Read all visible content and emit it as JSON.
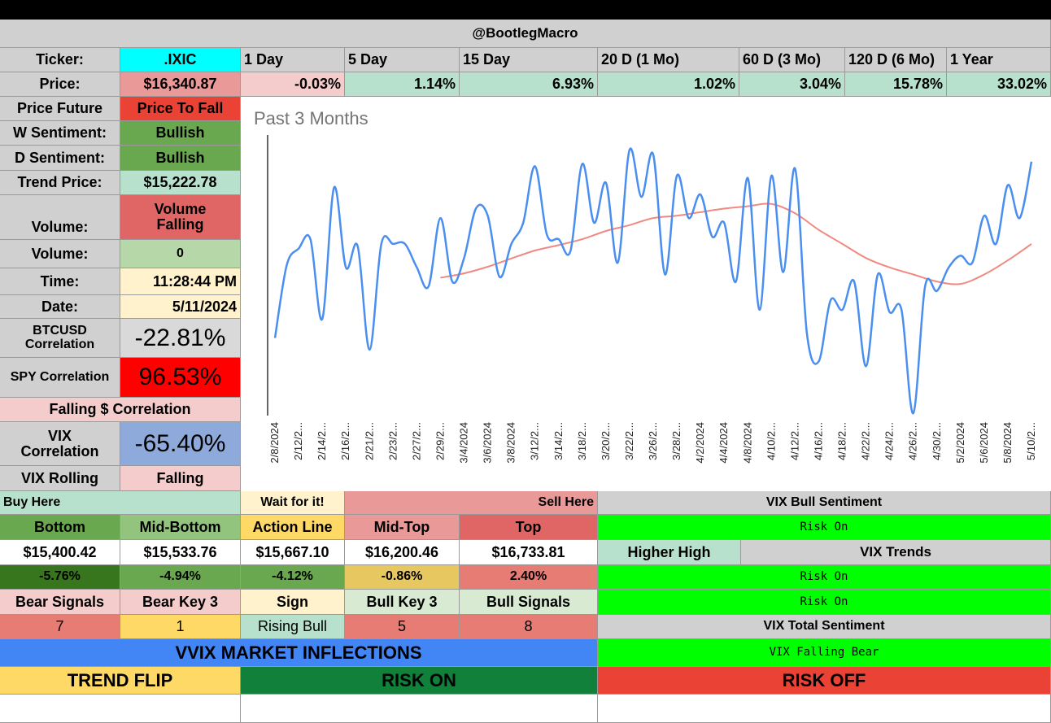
{
  "header": {
    "title": "@BootlegMacro"
  },
  "ticker": {
    "label": "Ticker:",
    "value": ".IXIC"
  },
  "periods": [
    {
      "label": "1 Day",
      "change": "-0.03%"
    },
    {
      "label": "5 Day",
      "change": "1.14%"
    },
    {
      "label": "15 Day",
      "change": "6.93%"
    },
    {
      "label": "20 D (1 Mo)",
      "change": "1.02%"
    },
    {
      "label": "60 D (3 Mo)",
      "change": "3.04%"
    },
    {
      "label": "120 D (6 Mo)",
      "change": "15.78%"
    },
    {
      "label": "1 Year",
      "change": "33.02%"
    }
  ],
  "sidebar": {
    "price_label": "Price:",
    "price_value": "$16,340.87",
    "future_label": "Price Future",
    "future_value": "Price To Fall",
    "w_sent_label": "W Sentiment:",
    "w_sent_value": "Bullish",
    "d_sent_label": "D Sentiment:",
    "d_sent_value": "Bullish",
    "trend_label": "Trend Price:",
    "trend_value": "$15,222.78",
    "volume_label": "Volume:",
    "volume_status": "Volume Falling",
    "volume2_label": "Volume:",
    "volume2_value": "0",
    "time_label": "Time:",
    "time_value": "11:28:44 PM",
    "date_label": "Date:",
    "date_value": "5/11/2024",
    "btc_label": "BTCUSD Correlation",
    "btc_value": "-22.81%",
    "spy_label": "SPY Correlation",
    "spy_value": "96.53%",
    "falling_corr": "Falling $ Correlation",
    "vix_label": "VIX Correlation",
    "vix_value": "-65.40%",
    "vixroll_label": "VIX Rolling",
    "vixroll_value": "Falling"
  },
  "levels": {
    "buy_here": "Buy Here",
    "wait": "Wait for it!",
    "sell_here": "Sell Here",
    "headers": [
      "Bottom",
      "Mid-Bottom",
      "Action Line",
      "Mid-Top",
      "Top"
    ],
    "prices": [
      "$15,400.42",
      "$15,533.76",
      "$15,667.10",
      "$16,200.46",
      "$16,733.81"
    ],
    "pcts": [
      "-5.76%",
      "-4.94%",
      "-4.12%",
      "-0.86%",
      "2.40%"
    ],
    "signal_headers": [
      "Bear Signals",
      "Bear Key 3",
      "Sign",
      "Bull Key 3",
      "Bull Signals"
    ],
    "signal_values": [
      "7",
      "1",
      "Rising Bull",
      "5",
      "8"
    ]
  },
  "vix": {
    "bull_sentiment_label": "VIX Bull Sentiment",
    "bull_sentiment_value": "Risk On",
    "higher_high": "Higher High",
    "trends_label": "VIX Trends",
    "trend1": "Risk On",
    "trend2": "Risk On",
    "total_label": "VIX Total Sentiment",
    "total_value": "VIX Falling Bear"
  },
  "vvix": {
    "title": "VVIX MARKET INFLECTIONS",
    "trend_flip": "TREND FLIP",
    "risk_on": "RISK ON",
    "risk_off": "RISK OFF"
  },
  "colors": {
    "cyan": "#00ffff",
    "pink": "#f4cccc",
    "mint": "#b7e1cd",
    "red": "#ff0000",
    "bright_green": "#00ff00",
    "green_dark": "#6aa84f",
    "yellow_light": "#fff2cc",
    "gray": "#d0d0d0",
    "blue": "#4285f4",
    "salmon": "#e06666",
    "light_salmon": "#ea9999",
    "mustard": "#e6c760",
    "orange_yellow": "#ffd966",
    "dark_green": "#11803a",
    "risk_red": "#ea4335",
    "light_green": "#93c47d",
    "pale_green": "#d9ead3",
    "steel_blue": "#8eaadb",
    "line_blue": "#4a8ff0",
    "line_red": "#f08a80"
  },
  "chart_data": {
    "type": "line",
    "title": "Past 3 Months",
    "x": [
      "2/8/2024",
      "2/12/2...",
      "2/14/2...",
      "2/16/2...",
      "2/21/2...",
      "2/23/2...",
      "2/27/2...",
      "2/29/2...",
      "3/4/2024",
      "3/6/2024",
      "3/8/2024",
      "3/12/2...",
      "3/14/2...",
      "3/18/2...",
      "3/20/2...",
      "3/22/2...",
      "3/26/2...",
      "3/28/2...",
      "4/2/2024",
      "4/4/2024",
      "4/8/2024",
      "4/10/2...",
      "4/12/2...",
      "4/16/2...",
      "4/18/2...",
      "4/22/2...",
      "4/24/2...",
      "4/26/2...",
      "4/30/2...",
      "5/2/2024",
      "5/6/2024",
      "5/8/2024",
      "5/10/2..."
    ],
    "series": [
      {
        "name": "Price",
        "values": [
          15580,
          15960,
          15660,
          15880,
          15530,
          15980,
          15880,
          16090,
          15920,
          16100,
          15980,
          16310,
          16000,
          16320,
          16240,
          16380,
          16360,
          16270,
          16190,
          16070,
          16260,
          16270,
          16300,
          15480,
          15700,
          15460,
          15690,
          15260,
          15780,
          15930,
          16100,
          16230,
          16330
        ],
        "sub_values": [
          15890,
          16000,
          16220,
          15970,
          15980,
          15980,
          15800,
          15820,
          16130,
          15840,
          16070,
          16020,
          15950,
          16070,
          15900,
          16180,
          15850,
          16090,
          16010,
          15820,
          15700,
          15860,
          15600,
          15740,
          15820,
          15850,
          15700,
          15800,
          15880,
          15900,
          15980,
          16090,
          16150
        ]
      },
      {
        "name": "Trend",
        "values": [
          null,
          null,
          null,
          null,
          null,
          null,
          null,
          15836,
          15855,
          15883,
          15918,
          15952,
          15975,
          16000,
          16035,
          16060,
          16090,
          16100,
          16115,
          16130,
          16140,
          16150,
          16110,
          16040,
          15980,
          15920,
          15880,
          15850,
          15820,
          15810,
          15850,
          15910,
          15980
        ]
      }
    ],
    "ylim": [
      15250,
      16450
    ],
    "grid": false,
    "legend": "none"
  }
}
